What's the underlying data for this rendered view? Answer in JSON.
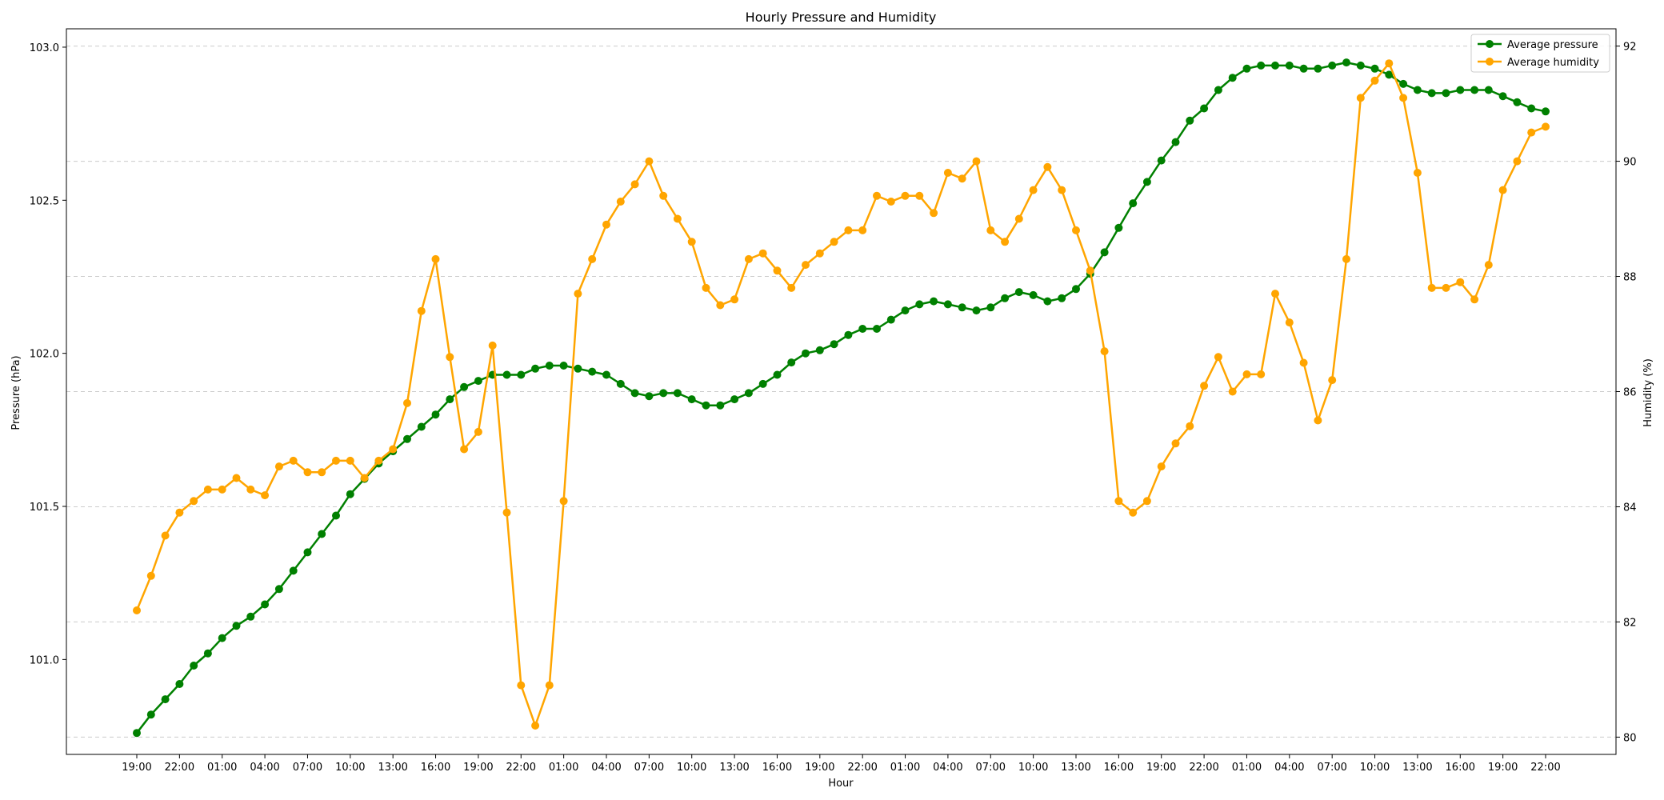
{
  "chart_data": {
    "type": "line",
    "title": "Hourly Pressure and Humidity",
    "xlabel": "Hour",
    "ylabel": "Pressure (hPa)",
    "y2label": "Humidity (%)",
    "ylim": [
      100.69,
      103.06
    ],
    "y2lim": [
      79.7,
      92.3
    ],
    "yticks": [
      101.0,
      101.5,
      102.0,
      102.5,
      103.0
    ],
    "y2ticks": [
      80,
      82,
      84,
      86,
      88,
      90,
      92
    ],
    "grid": "horizontal-dashed",
    "legend_position": "top-right",
    "x": [
      "19:00",
      "20:00",
      "21:00",
      "22:00",
      "23:00",
      "00:00",
      "01:00",
      "02:00",
      "03:00",
      "04:00",
      "05:00",
      "06:00",
      "07:00",
      "08:00",
      "09:00",
      "10:00",
      "11:00",
      "12:00",
      "13:00",
      "14:00",
      "15:00",
      "16:00",
      "17:00",
      "18:00",
      "19:00",
      "20:00",
      "21:00",
      "22:00",
      "23:00",
      "00:00",
      "01:00",
      "02:00",
      "03:00",
      "04:00",
      "05:00",
      "06:00",
      "07:00",
      "08:00",
      "09:00",
      "10:00",
      "11:00",
      "12:00",
      "13:00",
      "14:00",
      "15:00",
      "16:00",
      "17:00",
      "18:00",
      "19:00",
      "20:00",
      "21:00",
      "22:00",
      "23:00",
      "00:00",
      "01:00",
      "02:00",
      "03:00",
      "04:00",
      "05:00",
      "06:00",
      "07:00",
      "08:00",
      "09:00",
      "10:00",
      "11:00",
      "12:00",
      "13:00",
      "14:00",
      "15:00",
      "16:00",
      "17:00",
      "18:00",
      "19:00",
      "20:00",
      "21:00",
      "22:00",
      "23:00",
      "00:00",
      "01:00",
      "02:00",
      "03:00",
      "04:00",
      "05:00",
      "06:00",
      "07:00",
      "08:00",
      "09:00",
      "10:00",
      "11:00",
      "12:00",
      "13:00",
      "14:00",
      "15:00",
      "16:00",
      "17:00",
      "18:00",
      "19:00",
      "20:00",
      "21:00",
      "22:00"
    ],
    "xtick_step": 3,
    "series": [
      {
        "name": "Average pressure",
        "axis": "left",
        "color": "#008000",
        "values": [
          100.76,
          100.82,
          100.87,
          100.92,
          100.98,
          101.02,
          101.07,
          101.11,
          101.14,
          101.18,
          101.23,
          101.29,
          101.35,
          101.41,
          101.47,
          101.54,
          101.59,
          101.64,
          101.68,
          101.72,
          101.76,
          101.8,
          101.85,
          101.89,
          101.91,
          101.93,
          101.93,
          101.93,
          101.95,
          101.96,
          101.96,
          101.95,
          101.94,
          101.93,
          101.9,
          101.87,
          101.86,
          101.87,
          101.87,
          101.85,
          101.83,
          101.83,
          101.85,
          101.87,
          101.9,
          101.93,
          101.97,
          102.0,
          102.01,
          102.03,
          102.06,
          102.08,
          102.08,
          102.11,
          102.14,
          102.16,
          102.17,
          102.16,
          102.15,
          102.14,
          102.15,
          102.18,
          102.2,
          102.19,
          102.17,
          102.18,
          102.21,
          102.26,
          102.33,
          102.41,
          102.49,
          102.56,
          102.63,
          102.69,
          102.76,
          102.8,
          102.86,
          102.9,
          102.93,
          102.94,
          102.94,
          102.94,
          102.93,
          102.93,
          102.94,
          102.95,
          102.94,
          102.93,
          102.91,
          102.88,
          102.86,
          102.85,
          102.85,
          102.86,
          102.86,
          102.86,
          102.84,
          102.82,
          102.8,
          102.79
        ]
      },
      {
        "name": "Average humidity",
        "axis": "right",
        "color": "#FFA500",
        "values": [
          82.2,
          82.8,
          83.5,
          83.9,
          84.1,
          84.3,
          84.3,
          84.5,
          84.3,
          84.2,
          84.7,
          84.8,
          84.6,
          84.6,
          84.8,
          84.8,
          84.5,
          84.8,
          85.0,
          85.8,
          87.4,
          88.3,
          86.6,
          85.0,
          85.3,
          86.8,
          83.9,
          80.9,
          80.2,
          80.9,
          84.1,
          87.7,
          88.3,
          88.9,
          89.3,
          89.6,
          90.0,
          89.4,
          89.0,
          88.6,
          87.8,
          87.5,
          87.6,
          88.3,
          88.4,
          88.1,
          87.8,
          88.2,
          88.4,
          88.6,
          88.8,
          88.8,
          89.4,
          89.3,
          89.4,
          89.4,
          89.1,
          89.8,
          89.7,
          90.0,
          88.8,
          88.6,
          89.0,
          89.5,
          89.9,
          89.5,
          88.8,
          88.1,
          86.7,
          84.1,
          83.9,
          84.1,
          84.7,
          85.1,
          85.4,
          86.1,
          86.6,
          86.0,
          86.3,
          86.3,
          87.7,
          87.2,
          86.5,
          85.5,
          86.2,
          88.3,
          91.1,
          91.4,
          91.7,
          91.1,
          89.8,
          87.8,
          87.8,
          87.9,
          87.6,
          88.2,
          89.5,
          90.0,
          90.5,
          90.6
        ]
      }
    ]
  }
}
